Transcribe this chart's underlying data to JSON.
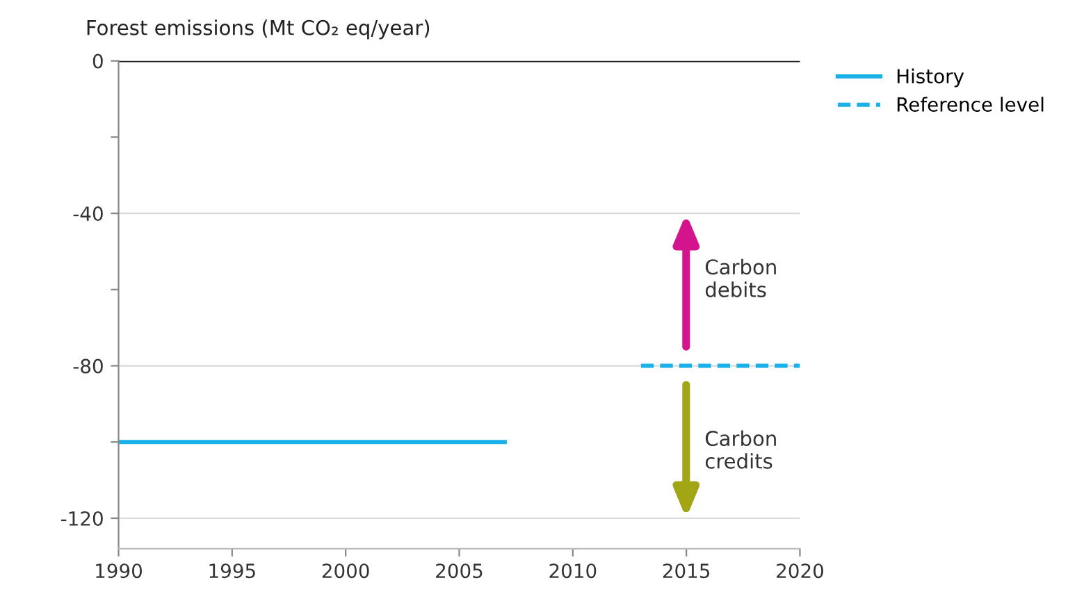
{
  "chart_data": {
    "type": "line",
    "ylabel": "Forest emissions (Mt CO₂ eq/year)",
    "series": [
      {
        "name": "History",
        "color": "#1ab0e8",
        "x": [
          1990,
          2007
        ],
        "values": [
          -100,
          -100
        ],
        "line_style": "solid"
      },
      {
        "name": "Reference level",
        "color": "#1ab0e8",
        "x": [
          2013,
          2020
        ],
        "values": [
          -80,
          -80
        ],
        "line_style": "dashed"
      }
    ],
    "xlim": [
      1990,
      2020
    ],
    "xticks": [
      1990,
      1995,
      2000,
      2005,
      2010,
      2015,
      2020
    ],
    "ylim": [
      -128,
      0
    ],
    "yticks": [
      0,
      {
        "value": -20,
        "label": null
      },
      -40,
      {
        "value": -60,
        "label": null
      },
      -80,
      {
        "value": -100,
        "label": null
      },
      -120
    ],
    "ref_lines": [
      {
        "axis": "y",
        "value": 0,
        "label": null,
        "color": "#222222"
      }
    ],
    "annotations": [
      "Carbon\ndebits",
      "Carbon\ncredits"
    ],
    "grid": "y",
    "legend": "top right",
    "marker": "none"
  }
}
